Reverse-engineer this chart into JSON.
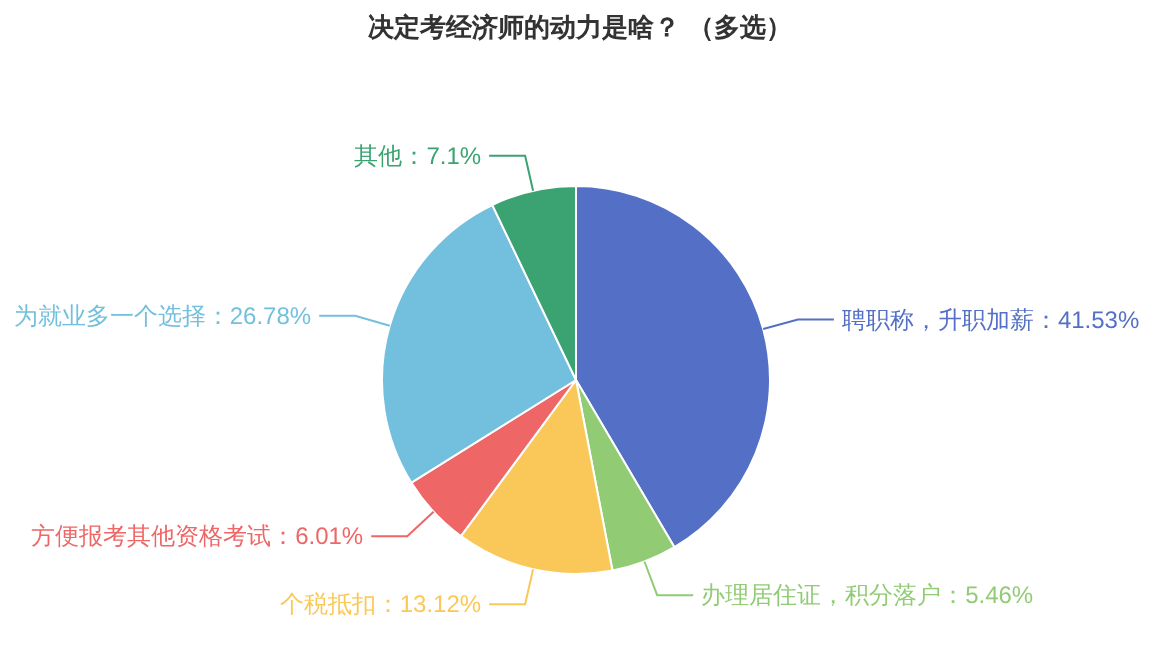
{
  "chart_data": {
    "type": "pie",
    "title": "决定考经济师的动力是啥？ （多选）",
    "categories": [
      "聘职称，升职加薪",
      "办理居住证，积分落户",
      "个税抵扣",
      "方便报考其他资格考试",
      "为就业多一个选择",
      "其他"
    ],
    "values": [
      41.53,
      5.46,
      13.12,
      6.01,
      26.78,
      7.1
    ],
    "value_labels": [
      "41.53%",
      "5.46%",
      "13.12%",
      "6.01%",
      "26.78%",
      "7.1%"
    ],
    "colors": [
      "#5470c6",
      "#91cc75",
      "#fac858",
      "#ee6666",
      "#73c0de",
      "#3ba272"
    ]
  }
}
